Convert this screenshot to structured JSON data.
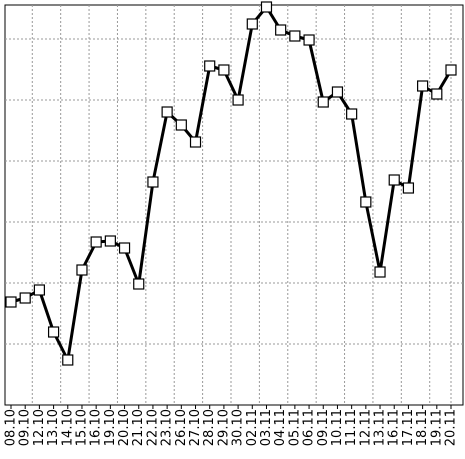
{
  "chart_data": {
    "type": "line",
    "categories": [
      "08.10",
      "09.10",
      "12.10",
      "13.10",
      "14.10",
      "15.10",
      "16.10",
      "19.10",
      "20.10",
      "21.10",
      "22.10",
      "23.10",
      "26.10",
      "27.10",
      "28.10",
      "29.10",
      "30.10",
      "02.11",
      "03.11",
      "04.11",
      "05.11",
      "06.11",
      "09.11",
      "10.11",
      "11.11",
      "12.11",
      "13.11",
      "16.11",
      "17.11",
      "18.11",
      "19.11",
      "20.11"
    ],
    "series": [
      {
        "color": "#000000",
        "values": [
          103,
          107,
          115,
          73,
          45,
          135,
          163,
          164,
          157,
          121,
          223,
          293,
          280,
          263,
          339,
          335,
          305,
          381,
          398,
          375,
          369,
          365,
          303,
          313,
          291,
          203,
          133,
          225,
          217,
          319,
          311,
          335
        ]
      }
    ],
    "ylim": [
      0,
      400
    ],
    "yticks": [
      61,
      122,
      183,
      244,
      305,
      366
    ],
    "grid": true
  }
}
